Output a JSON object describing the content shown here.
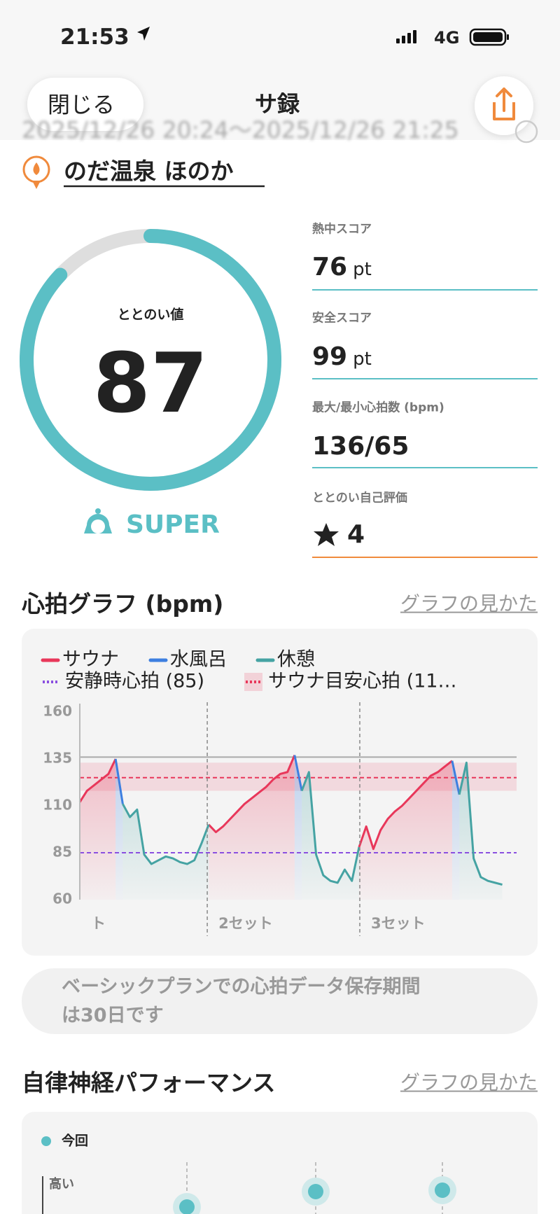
{
  "status_bar": {
    "time": "21:53",
    "network": "4G"
  },
  "header": {
    "close": "閉じる",
    "title": "サ録",
    "date_range": "2025/12/26 20:24〜2025/12/26 21:25"
  },
  "facility": "のだ温泉 ほのか",
  "stats": [
    {
      "label": "熱中スコア",
      "value": 76,
      "unit": "pt"
    },
    {
      "label": "安全スコア",
      "value": 99,
      "unit": "pt"
    },
    {
      "label": "最大/最小心拍数 (bpm)",
      "value": "136/65"
    },
    {
      "label": "ととのい自己評価",
      "value": 4
    }
  ],
  "sections": [
    {
      "title": "心拍グラフ (bpm)",
      "link": "グラフの見かた"
    },
    {
      "title": "自律神経パフォーマンス",
      "link": "グラフの見かた"
    }
  ],
  "chart_data": [
    {
      "type": "gauge",
      "title": "ととのい値",
      "values": [
        87
      ],
      "ylim": [
        0,
        100
      ],
      "label": "SUPER",
      "color": "#5bbfc5"
    },
    {
      "type": "line",
      "x": [
        0,
        1,
        2,
        3,
        4,
        5,
        6,
        7,
        8,
        9,
        10,
        11,
        12,
        13,
        14,
        15,
        16,
        17,
        18,
        19,
        20,
        21,
        22,
        23,
        24,
        25,
        26,
        27,
        28,
        29,
        30,
        31,
        32,
        33,
        34,
        35,
        36,
        37,
        38,
        39,
        40,
        41,
        42,
        43,
        44,
        45,
        46,
        47,
        48,
        49,
        50,
        51,
        52,
        53,
        54,
        55,
        56,
        57,
        58,
        59
      ],
      "series": [
        {
          "name": "サウナ",
          "color": "#e8375a",
          "values": [
            112,
            118,
            121,
            124,
            127,
            135,
            null,
            null,
            null,
            null,
            null,
            null,
            null,
            null,
            null,
            null,
            null,
            null,
            100,
            96,
            99,
            103,
            107,
            111,
            114,
            117,
            120,
            124,
            127,
            128,
            137,
            null,
            null,
            null,
            null,
            null,
            null,
            null,
            null,
            88,
            99,
            87,
            97,
            103,
            107,
            110,
            114,
            118,
            122,
            126,
            128,
            131,
            134,
            null,
            null,
            null,
            null,
            null,
            null,
            null
          ]
        },
        {
          "name": "水風呂",
          "color": "#3d7fe0",
          "values": [
            null,
            null,
            null,
            null,
            null,
            135,
            111,
            null,
            null,
            null,
            null,
            null,
            null,
            null,
            null,
            null,
            null,
            null,
            null,
            null,
            null,
            null,
            null,
            null,
            null,
            null,
            null,
            null,
            null,
            null,
            137,
            118,
            null,
            null,
            null,
            null,
            null,
            null,
            null,
            null,
            null,
            null,
            null,
            null,
            null,
            null,
            null,
            null,
            null,
            null,
            null,
            null,
            134,
            116,
            null,
            null,
            null,
            null,
            null,
            null
          ]
        },
        {
          "name": "休憩",
          "color": "#45a3a3",
          "values": [
            null,
            null,
            null,
            null,
            null,
            null,
            111,
            104,
            108,
            84,
            79,
            81,
            83,
            82,
            80,
            79,
            81,
            90,
            100,
            null,
            null,
            null,
            null,
            null,
            null,
            null,
            null,
            null,
            null,
            null,
            null,
            118,
            128,
            84,
            73,
            70,
            69,
            76,
            70,
            88,
            null,
            null,
            null,
            null,
            null,
            null,
            null,
            null,
            null,
            null,
            null,
            null,
            null,
            116,
            133,
            82,
            72,
            70,
            69,
            68
          ]
        }
      ],
      "reference_lines": [
        {
          "name": "安静時心拍 (85)",
          "value": 85,
          "color": "#8a4fe0"
        },
        {
          "name": "サウナ目安心拍 (11…",
          "value": 125,
          "band": [
            118,
            133
          ],
          "color": "#e8375a"
        }
      ],
      "max_line": 136,
      "sets": [
        {
          "x": 0,
          "label": "ト"
        },
        {
          "x": 17.8,
          "label": "2セット"
        },
        {
          "x": 39.1,
          "label": "3セット"
        }
      ],
      "xlim": [
        0,
        61
      ],
      "ylim": [
        60,
        160
      ],
      "yticks": [
        60,
        85,
        110,
        135,
        160
      ]
    }
  ],
  "notice": {
    "lines": [
      "ベーシックプランでの心拍データ保存期間",
      "は30日です"
    ]
  },
  "autonomic": {
    "legend": "今回",
    "y_label": "高い"
  }
}
